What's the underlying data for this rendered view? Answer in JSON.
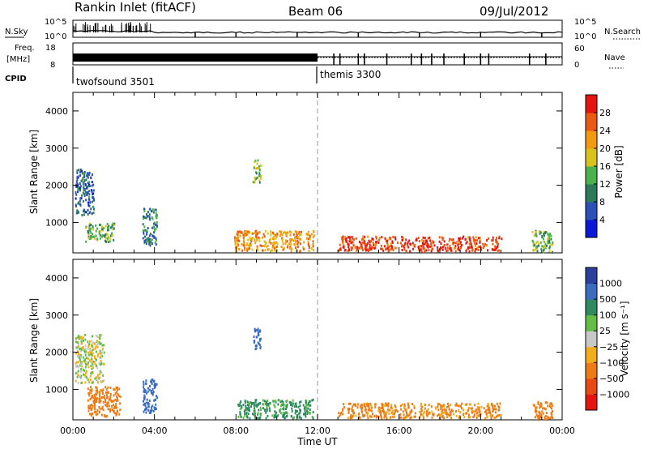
{
  "header": {
    "station": "Rankin Inlet (fitACF)",
    "beam": "Beam 06",
    "date": "09/Jul/2012"
  },
  "strip": {
    "nsky_label": "N.Sky",
    "nsky_ticks": [
      "10^5",
      "10^0"
    ],
    "nsearch_label": "N.Search",
    "nsearch_ticks": [
      "10^5",
      "10^0"
    ],
    "freq_label_1": "Freq.",
    "freq_label_2": "[MHz]",
    "freq_ticks": [
      "18",
      "8"
    ],
    "nave_label": "Nave",
    "nave_ticks": [
      "60",
      "0"
    ],
    "cpid_label": "CPID",
    "cpid_modes": [
      {
        "name": "twofsound 3501",
        "start_hour": 0
      },
      {
        "name": "themis 3300",
        "start_hour": 12.2
      }
    ]
  },
  "panels": {
    "ylabel": "Slant Range [km]",
    "yticks": [
      "1000",
      "2000",
      "3000",
      "4000"
    ],
    "xticks": [
      "00:00",
      "04:00",
      "08:00",
      "12:00",
      "16:00",
      "20:00",
      "00:00"
    ],
    "xlabel": "Time UT"
  },
  "power_scale": {
    "label": "Power [dB]",
    "ticks": [
      "4",
      "8",
      "12",
      "16",
      "20",
      "24",
      "28"
    ],
    "colors": [
      "#0a17d6",
      "#2b50b8",
      "#2d7a5b",
      "#49b24a",
      "#d9c21a",
      "#f39a0e",
      "#ec5a12",
      "#e6140f"
    ]
  },
  "velocity_scale": {
    "label": "Velocity [m s⁻¹]",
    "ticks": [
      "1000",
      "500",
      "100",
      "25",
      "−25",
      "−100",
      "−500",
      "−1000"
    ],
    "colors": [
      "#2a3f9e",
      "#3a6cc0",
      "#2f8a5f",
      "#62be44",
      "#c8c8c8",
      "#f3ad18",
      "#ee7b15",
      "#e84a12",
      "#e6140f"
    ]
  },
  "chart_data": [
    {
      "type": "heatmap",
      "title": "Power [dB]",
      "xlabel": "Time UT",
      "ylabel": "Slant Range [km]",
      "xlim": [
        0,
        24
      ],
      "ylim": [
        180,
        4500
      ],
      "regions": [
        {
          "t0": 0.1,
          "t1": 1.0,
          "r0": 1200,
          "r1": 2450,
          "value": 8
        },
        {
          "t0": 0.6,
          "t1": 2.0,
          "r0": 500,
          "r1": 1000,
          "value": 14
        },
        {
          "t0": 3.4,
          "t1": 4.1,
          "r0": 400,
          "r1": 1400,
          "value": 10
        },
        {
          "t0": 7.9,
          "t1": 11.8,
          "r0": 250,
          "r1": 800,
          "value": 22
        },
        {
          "t0": 8.8,
          "t1": 9.2,
          "r0": 2100,
          "r1": 2700,
          "value": 16
        },
        {
          "t0": 13.0,
          "t1": 21.0,
          "r0": 250,
          "r1": 650,
          "value": 28
        },
        {
          "t0": 22.5,
          "t1": 23.5,
          "r0": 200,
          "r1": 800,
          "value": 14
        }
      ]
    },
    {
      "type": "heatmap",
      "title": "Velocity [m s⁻¹]",
      "xlabel": "Time UT",
      "ylabel": "Slant Range [km]",
      "xlim": [
        0,
        24
      ],
      "ylim": [
        180,
        4500
      ],
      "regions": [
        {
          "t0": 0.1,
          "t1": 1.5,
          "r0": 1200,
          "r1": 2500,
          "value": 0
        },
        {
          "t0": 0.7,
          "t1": 2.3,
          "r0": 300,
          "r1": 1100,
          "value": -200
        },
        {
          "t0": 3.4,
          "t1": 4.1,
          "r0": 400,
          "r1": 1300,
          "value": 800
        },
        {
          "t0": 8.0,
          "t1": 11.8,
          "r0": 250,
          "r1": 750,
          "value": 150
        },
        {
          "t0": 8.8,
          "t1": 9.2,
          "r0": 2100,
          "r1": 2700,
          "value": 800
        },
        {
          "t0": 13.0,
          "t1": 21.0,
          "r0": 250,
          "r1": 650,
          "value": -150
        },
        {
          "t0": 22.5,
          "t1": 23.5,
          "r0": 200,
          "r1": 700,
          "value": -200
        }
      ]
    }
  ]
}
